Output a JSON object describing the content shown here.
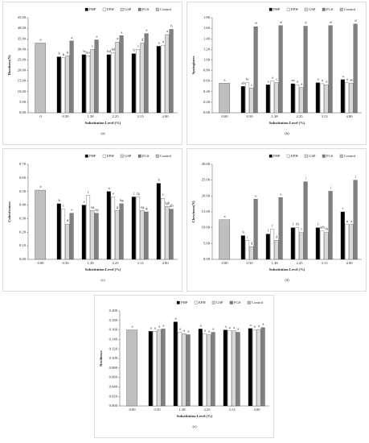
{
  "chart_data": [
    {
      "type": "bar",
      "y_label": "Hardness(N)",
      "x_label": "Substitution Level (%)",
      "caption": "(a)",
      "categories": [
        "0",
        "0.50",
        "1.38",
        "2.25",
        "3.13",
        "4.00"
      ],
      "series": [
        {
          "name": "PHP",
          "color": "#000000",
          "values": [
            null,
            26.5,
            27.5,
            27.5,
            28,
            31.5
          ],
          "letters": [
            null,
            "b",
            "b",
            "bd",
            "b",
            "a"
          ]
        },
        {
          "name": "EPH",
          "color": "#ffffff",
          "values": [
            null,
            26,
            27,
            28.5,
            30,
            32
          ],
          "letters": [
            null,
            "b",
            "bcd",
            "bd",
            "c",
            "a"
          ]
        },
        {
          "name": "GSP",
          "color": "#d9d9d9",
          "values": [
            null,
            27,
            30,
            33.5,
            33,
            37
          ],
          "letters": [
            null,
            "b",
            "c",
            "a",
            "d",
            "a"
          ]
        },
        {
          "name": "FGS",
          "color": "#808080",
          "values": [
            null,
            34,
            34.5,
            36.5,
            37.5,
            39.5
          ],
          "letters": [
            null,
            "a",
            "a",
            "a",
            "a",
            "b"
          ]
        },
        {
          "name": "Control",
          "color": "#bfbfbf",
          "values": [
            33,
            null,
            null,
            null,
            null,
            null
          ],
          "letters": [
            "a",
            null,
            null,
            null,
            null,
            null
          ]
        }
      ],
      "ylim": [
        0,
        45
      ],
      "yticks": [
        {
          "value": 0,
          "label": "0.00"
        },
        {
          "value": 5,
          "label": "5.00"
        },
        {
          "value": 10,
          "label": "10.00"
        },
        {
          "value": 15,
          "label": "15.00"
        },
        {
          "value": 20,
          "label": "20.00"
        },
        {
          "value": 25,
          "label": "25.00"
        },
        {
          "value": 30,
          "label": "30.00"
        },
        {
          "value": 35,
          "label": "35.00"
        },
        {
          "value": 40,
          "label": "40.00"
        },
        {
          "value": 45,
          "label": "45.00"
        }
      ]
    },
    {
      "type": "bar",
      "y_label": "Springiness",
      "x_label": "Substitution Level (%)",
      "caption": "(b)",
      "categories": [
        "0.00",
        "0.50",
        "1.38",
        "2.25",
        "3.13",
        "4.00"
      ],
      "series": [
        {
          "name": "PHP",
          "color": "#000000",
          "values": [
            null,
            0.5,
            0.53,
            0.55,
            0.57,
            0.63
          ],
          "letters": [
            null,
            "ab",
            "a",
            "ae",
            "a",
            "a"
          ]
        },
        {
          "name": "EPH",
          "color": "#ffffff",
          "values": [
            null,
            0.57,
            0.6,
            0.53,
            0.55,
            0.57
          ],
          "letters": [
            null,
            "bc",
            "a",
            "a",
            "a",
            "a"
          ]
        },
        {
          "name": "GSP",
          "color": "#d9d9d9",
          "values": [
            null,
            0.47,
            0.57,
            0.48,
            0.53,
            0.56
          ],
          "letters": [
            null,
            "c",
            "c",
            "a",
            "a",
            "ae"
          ]
        },
        {
          "name": "FGS",
          "color": "#808080",
          "values": [
            null,
            1.63,
            1.65,
            1.64,
            1.65,
            1.68
          ],
          "letters": [
            null,
            "d",
            "d",
            "d",
            "d",
            "d"
          ]
        },
        {
          "name": "Control",
          "color": "#bfbfbf",
          "values": [
            0.56,
            null,
            null,
            null,
            null,
            null
          ],
          "letters": [
            "a",
            null,
            null,
            null,
            null,
            null
          ]
        }
      ],
      "ylim": [
        0,
        1.8
      ],
      "yticks": [
        {
          "value": 0,
          "label": "0.00"
        },
        {
          "value": 0.2,
          "label": "0.20"
        },
        {
          "value": 0.4,
          "label": "0.40"
        },
        {
          "value": 0.6,
          "label": "0.60"
        },
        {
          "value": 0.8,
          "label": "0.80"
        },
        {
          "value": 1,
          "label": "1.00"
        },
        {
          "value": 1.2,
          "label": "1.20"
        },
        {
          "value": 1.4,
          "label": "1.40"
        },
        {
          "value": 1.6,
          "label": "1.60"
        },
        {
          "value": 1.8,
          "label": "1.80"
        }
      ]
    },
    {
      "type": "bar",
      "y_label": "Cohesiveness",
      "x_label": "Substitution Level (%)",
      "caption": "(c)",
      "categories": [
        "0.00",
        "0.50",
        "1.38",
        "2.25",
        "3.13",
        "4.00"
      ],
      "series": [
        {
          "name": "PHP",
          "color": "#000000",
          "values": [
            null,
            0.41,
            0.4,
            0.5,
            0.46,
            0.56
          ],
          "letters": [
            null,
            "b",
            "e",
            "a",
            "f",
            "h"
          ]
        },
        {
          "name": "EPH",
          "color": "#ffffff",
          "values": [
            null,
            0.37,
            0.47,
            0.46,
            0.46,
            0.45
          ],
          "letters": [
            null,
            "c",
            "f",
            "e",
            "fg",
            "f"
          ]
        },
        {
          "name": "GSP",
          "color": "#d9d9d9",
          "values": [
            null,
            0.26,
            0.36,
            0.36,
            0.36,
            0.39
          ],
          "letters": [
            null,
            "d",
            "eg",
            "g",
            "eg",
            "fgh"
          ]
        },
        {
          "name": "FGS",
          "color": "#808080",
          "values": [
            null,
            0.34,
            0.34,
            0.41,
            0.35,
            0.37
          ],
          "letters": [
            null,
            "e",
            "eg",
            "bg",
            "g",
            "gh"
          ]
        },
        {
          "name": "Control",
          "color": "#bfbfbf",
          "values": [
            0.51,
            null,
            null,
            null,
            null,
            null
          ],
          "letters": [
            "a",
            null,
            null,
            null,
            null,
            null
          ]
        }
      ],
      "ylim": [
        0,
        0.7
      ],
      "yticks": [
        {
          "value": 0,
          "label": "0.00"
        },
        {
          "value": 0.1,
          "label": "0.10"
        },
        {
          "value": 0.2,
          "label": "0.20"
        },
        {
          "value": 0.3,
          "label": "0.30"
        },
        {
          "value": 0.4,
          "label": "0.40"
        },
        {
          "value": 0.5,
          "label": "0.50"
        },
        {
          "value": 0.6,
          "label": "0.60"
        },
        {
          "value": 0.7,
          "label": "0.70"
        }
      ]
    },
    {
      "type": "bar",
      "y_label": "Chewiness(N)",
      "x_label": "Substitution Level (%)",
      "caption": "(d)",
      "categories": [
        "0.00",
        "0.50",
        "1.38",
        "2.25",
        "3.13",
        "4.00"
      ],
      "series": [
        {
          "name": "PHP",
          "color": "#000000",
          "values": [
            null,
            7.5,
            8,
            10,
            10,
            15
          ],
          "letters": [
            null,
            "b",
            "f",
            "f",
            "f",
            "i"
          ]
        },
        {
          "name": "EPH",
          "color": "#ffffff",
          "values": [
            null,
            6,
            9.5,
            10,
            9,
            11
          ],
          "letters": [
            null,
            "c",
            "f",
            "fh",
            "afh",
            "a"
          ]
        },
        {
          "name": "GSP",
          "color": "#d9d9d9",
          "values": [
            null,
            4,
            6,
            8.5,
            8.5,
            11
          ],
          "letters": [
            null,
            "d",
            "d",
            "c",
            "fh",
            "a"
          ]
        },
        {
          "name": "FGS",
          "color": "#808080",
          "values": [
            null,
            19,
            19.5,
            24.5,
            21.5,
            25
          ],
          "letters": [
            null,
            "e",
            "e",
            "i",
            "i",
            "i"
          ]
        },
        {
          "name": "Control",
          "color": "#bfbfbf",
          "values": [
            12.5,
            null,
            null,
            null,
            null,
            null
          ],
          "letters": [
            "a",
            null,
            null,
            null,
            null,
            null
          ]
        }
      ],
      "ylim": [
        0,
        30
      ],
      "yticks": [
        {
          "value": 0,
          "label": "0.00"
        },
        {
          "value": 5,
          "label": "5.00"
        },
        {
          "value": 10,
          "label": "10.00"
        },
        {
          "value": 15,
          "label": "15.00"
        },
        {
          "value": 20,
          "label": "20.00"
        },
        {
          "value": 25,
          "label": "25.00"
        },
        {
          "value": 30,
          "label": "30.00"
        }
      ]
    },
    {
      "type": "bar",
      "y_label": "Resilience",
      "x_label": "Substitution Level (%)",
      "caption": "(e)",
      "categories": [
        "0.00",
        "0.50",
        "1.38",
        "2.25",
        "3.13",
        "4.00"
      ],
      "series": [
        {
          "name": "PHP",
          "color": "#000000",
          "values": [
            null,
            0.157,
            0.177,
            0.162,
            0.16,
            0.163
          ],
          "letters": [
            null,
            "a",
            "a",
            "a",
            "a",
            "a"
          ]
        },
        {
          "name": "EPH",
          "color": "#ffffff",
          "values": [
            null,
            0.157,
            0.155,
            0.152,
            0.158,
            0.16
          ],
          "letters": [
            null,
            "a",
            "a",
            "a",
            "a",
            "a"
          ]
        },
        {
          "name": "GSP",
          "color": "#d9d9d9",
          "values": [
            null,
            0.16,
            0.152,
            0.15,
            0.158,
            0.161
          ],
          "letters": [
            null,
            "a",
            "a",
            "a",
            "a",
            "a"
          ]
        },
        {
          "name": "FGS",
          "color": "#808080",
          "values": [
            null,
            0.162,
            0.15,
            0.155,
            0.155,
            0.165
          ],
          "letters": [
            null,
            "a",
            "a",
            "a",
            "a",
            "a"
          ]
        },
        {
          "name": "Control",
          "color": "#bfbfbf",
          "values": [
            0.16,
            null,
            null,
            null,
            null,
            null
          ],
          "letters": [
            "a",
            null,
            null,
            null,
            null,
            null
          ]
        }
      ],
      "ylim": [
        0,
        0.2
      ],
      "yticks": [
        {
          "value": 0,
          "label": "0.000"
        },
        {
          "value": 0.02,
          "label": "0.020"
        },
        {
          "value": 0.04,
          "label": "0.040"
        },
        {
          "value": 0.06,
          "label": "0.060"
        },
        {
          "value": 0.08,
          "label": "0.080"
        },
        {
          "value": 0.1,
          "label": "0.100"
        },
        {
          "value": 0.12,
          "label": "0.120"
        },
        {
          "value": 0.14,
          "label": "0.140"
        },
        {
          "value": 0.16,
          "label": "0.160"
        },
        {
          "value": 0.18,
          "label": "0.180"
        },
        {
          "value": 0.2,
          "label": "0.200"
        }
      ]
    }
  ]
}
